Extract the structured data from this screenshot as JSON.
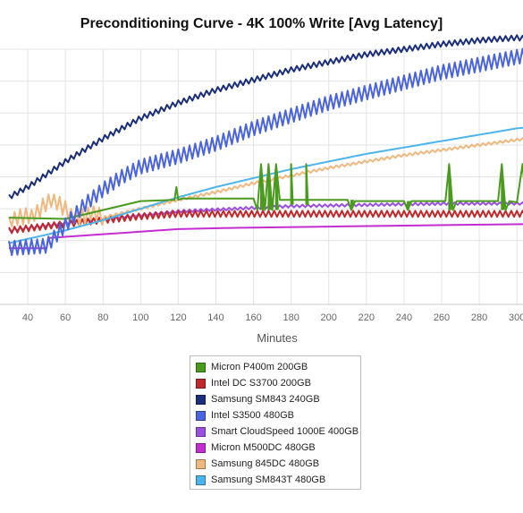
{
  "chart_data": {
    "type": "line",
    "title": "Preconditioning Curve - 4K 100% Write [Avg Latency]",
    "xlabel": "Minutes",
    "ylabel": "",
    "x_ticks": [
      40,
      60,
      80,
      100,
      120,
      140,
      160,
      180,
      200,
      220,
      240,
      260,
      280,
      300
    ],
    "xlim": [
      30,
      308
    ],
    "ylim": [
      0,
      10
    ],
    "grid": true,
    "legend_position": "bottom",
    "series": [
      {
        "name": "Micron P400m 200GB",
        "color": "#4a9a1e",
        "pattern": "plateau-with-spikes",
        "points": [
          [
            30,
            3.4
          ],
          [
            60,
            3.35
          ],
          [
            80,
            3.7
          ],
          [
            100,
            4.05
          ],
          [
            118,
            4.1
          ],
          [
            119,
            4.6
          ],
          [
            120,
            4.1
          ],
          [
            122,
            4.15
          ],
          [
            160,
            4.15
          ],
          [
            162,
            3.7
          ],
          [
            164,
            5.5
          ],
          [
            166,
            3.7
          ],
          [
            168,
            5.5
          ],
          [
            170,
            3.7
          ],
          [
            172,
            5.5
          ],
          [
            174,
            4.1
          ],
          [
            210,
            4.1
          ],
          [
            212,
            3.7
          ],
          [
            214,
            4.05
          ],
          [
            240,
            4.05
          ],
          [
            242,
            3.7
          ],
          [
            244,
            4.05
          ],
          [
            262,
            4.05
          ],
          [
            264,
            5.5
          ],
          [
            266,
            3.7
          ],
          [
            268,
            4.05
          ],
          [
            290,
            4.05
          ],
          [
            292,
            5.5
          ],
          [
            294,
            3.7
          ],
          [
            296,
            4.05
          ],
          [
            300,
            4.0
          ],
          [
            303,
            5.5
          ],
          [
            305,
            3.8
          ],
          [
            308,
            4.0
          ]
        ],
        "spikes": [
          [
            164,
            5.5,
            3.7
          ],
          [
            168,
            5.5,
            3.7
          ],
          [
            172,
            5.5,
            3.7
          ],
          [
            180,
            5.5,
            3.9
          ],
          [
            188,
            5.5,
            3.9
          ],
          [
            212,
            3.7,
            4.1
          ],
          [
            242,
            3.7,
            4.05
          ],
          [
            264,
            5.5,
            3.7
          ],
          [
            292,
            5.5,
            3.7
          ]
        ]
      },
      {
        "name": "Intel DC S3700 200GB",
        "color": "#c0282a",
        "pattern": "oscillating",
        "points": [
          [
            30,
            2.9
          ],
          [
            60,
            3.15
          ],
          [
            80,
            3.3
          ],
          [
            100,
            3.45
          ],
          [
            120,
            3.55
          ],
          [
            150,
            3.55
          ],
          [
            200,
            3.55
          ],
          [
            250,
            3.55
          ],
          [
            308,
            3.55
          ]
        ],
        "amplitude": 0.12
      },
      {
        "name": "Samsung SM843 240GB",
        "color": "#1a2e7a",
        "pattern": "oscillating",
        "points": [
          [
            30,
            4.2
          ],
          [
            40,
            4.6
          ],
          [
            60,
            5.6
          ],
          [
            80,
            6.5
          ],
          [
            100,
            7.3
          ],
          [
            120,
            7.9
          ],
          [
            140,
            8.4
          ],
          [
            160,
            8.8
          ],
          [
            180,
            9.2
          ],
          [
            200,
            9.5
          ],
          [
            220,
            9.8
          ],
          [
            240,
            10.0
          ],
          [
            260,
            10.2
          ],
          [
            280,
            10.35
          ],
          [
            300,
            10.45
          ],
          [
            308,
            10.4
          ]
        ],
        "amplitude": 0.1
      },
      {
        "name": "Intel S3500 480GB",
        "color": "#4a64e0",
        "pattern": "oscillating",
        "points": [
          [
            30,
            2.2
          ],
          [
            50,
            2.3
          ],
          [
            60,
            3.1
          ],
          [
            70,
            3.9
          ],
          [
            80,
            4.5
          ],
          [
            90,
            5.0
          ],
          [
            100,
            5.4
          ],
          [
            120,
            5.8
          ],
          [
            140,
            6.3
          ],
          [
            160,
            6.9
          ],
          [
            180,
            7.4
          ],
          [
            200,
            7.9
          ],
          [
            220,
            8.3
          ],
          [
            240,
            8.7
          ],
          [
            260,
            9.1
          ],
          [
            280,
            9.4
          ],
          [
            300,
            9.7
          ],
          [
            308,
            9.8
          ]
        ],
        "amplitude": 0.28
      },
      {
        "name": "Smart CloudSpeed 1000E 400GB",
        "color": "#9b4fe0",
        "pattern": "oscillating",
        "points": [
          [
            30,
            2.9
          ],
          [
            60,
            3.2
          ],
          [
            80,
            3.35
          ],
          [
            100,
            3.5
          ],
          [
            120,
            3.65
          ],
          [
            150,
            3.75
          ],
          [
            180,
            3.85
          ],
          [
            220,
            3.9
          ],
          [
            260,
            3.95
          ],
          [
            308,
            3.95
          ]
        ],
        "amplitude": 0.05
      },
      {
        "name": "Micron M500DC 480GB",
        "color": "#c22ecf",
        "pattern": "step",
        "points": [
          [
            30,
            2.2
          ],
          [
            50,
            2.2
          ],
          [
            51,
            2.6
          ],
          [
            60,
            2.65
          ],
          [
            80,
            2.75
          ],
          [
            100,
            2.85
          ],
          [
            120,
            2.95
          ],
          [
            150,
            3.0
          ],
          [
            200,
            3.05
          ],
          [
            250,
            3.1
          ],
          [
            308,
            3.15
          ]
        ],
        "amplitude": 0.0
      },
      {
        "name": "Samsung 845DC 480GB",
        "color": "#efb87f",
        "pattern": "noisy-then-smooth",
        "points": [
          [
            30,
            3.0
          ],
          [
            40,
            3.6
          ],
          [
            50,
            3.9
          ],
          [
            60,
            3.8
          ],
          [
            70,
            3.4
          ],
          [
            80,
            3.4
          ],
          [
            100,
            3.75
          ],
          [
            120,
            4.1
          ],
          [
            140,
            4.4
          ],
          [
            160,
            4.75
          ],
          [
            180,
            5.05
          ],
          [
            200,
            5.35
          ],
          [
            220,
            5.6
          ],
          [
            240,
            5.85
          ],
          [
            260,
            6.05
          ],
          [
            280,
            6.25
          ],
          [
            300,
            6.45
          ],
          [
            308,
            6.5
          ]
        ],
        "amplitude": 0.05
      },
      {
        "name": "Samsung SM843T 480GB",
        "color": "#4bb4ea",
        "pattern": "smooth",
        "points": [
          [
            30,
            2.4
          ],
          [
            60,
            2.9
          ],
          [
            80,
            3.3
          ],
          [
            100,
            3.75
          ],
          [
            120,
            4.2
          ],
          [
            140,
            4.6
          ],
          [
            160,
            4.95
          ],
          [
            180,
            5.3
          ],
          [
            200,
            5.6
          ],
          [
            220,
            5.9
          ],
          [
            240,
            6.15
          ],
          [
            260,
            6.4
          ],
          [
            280,
            6.65
          ],
          [
            300,
            6.9
          ],
          [
            308,
            6.95
          ]
        ],
        "amplitude": 0.0
      }
    ]
  }
}
